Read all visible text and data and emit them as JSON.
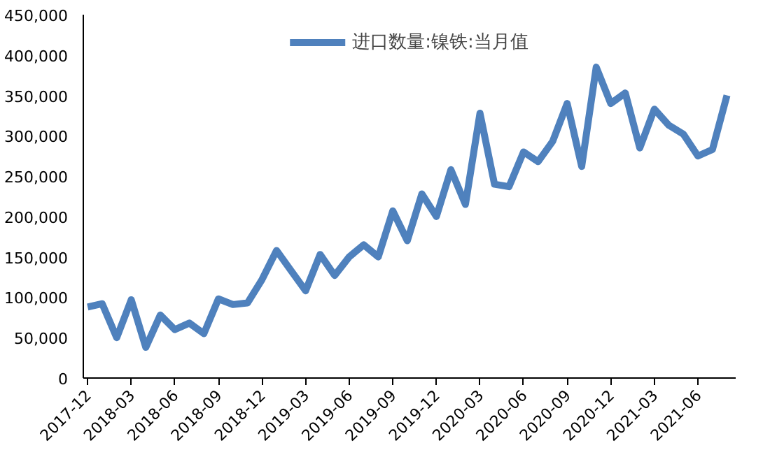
{
  "chart_data": {
    "type": "line",
    "categories": [
      "2017-12",
      null,
      null,
      "2018-03",
      null,
      null,
      "2018-06",
      null,
      null,
      "2018-09",
      null,
      null,
      "2018-12",
      null,
      null,
      "2019-03",
      null,
      null,
      "2019-06",
      null,
      null,
      "2019-09",
      null,
      null,
      "2019-12",
      null,
      null,
      "2020-03",
      null,
      null,
      "2020-06",
      null,
      null,
      "2020-09",
      null,
      null,
      "2020-12",
      null,
      null,
      "2021-03",
      null,
      null,
      "2021-06",
      null,
      null
    ],
    "series": [
      {
        "name": "进口数量:镍铁:当月值",
        "color": "#4f81bd",
        "values": [
          88000,
          92000,
          50000,
          97000,
          38000,
          78000,
          60000,
          68000,
          55000,
          98000,
          91000,
          93000,
          122000,
          158000,
          133000,
          108000,
          153000,
          127000,
          150000,
          165000,
          150000,
          207000,
          170000,
          228000,
          200000,
          258000,
          215000,
          328000,
          240000,
          237000,
          280000,
          268000,
          293000,
          340000,
          262000,
          385000,
          340000,
          353000,
          285000,
          333000,
          313000,
          302000,
          275000,
          283000,
          350000
        ]
      }
    ],
    "ylim": [
      0,
      450000
    ],
    "yticks": [
      {
        "value": 0,
        "label": "0"
      },
      {
        "value": 50000,
        "label": "50,000"
      },
      {
        "value": 100000,
        "label": "100,000"
      },
      {
        "value": 150000,
        "label": "150,000"
      },
      {
        "value": 200000,
        "label": "200,000"
      },
      {
        "value": 250000,
        "label": "250,000"
      },
      {
        "value": 300000,
        "label": "300,000"
      },
      {
        "value": 350000,
        "label": "350,000"
      },
      {
        "value": 400000,
        "label": "400,000"
      },
      {
        "value": 450000,
        "label": "450,000"
      }
    ],
    "grid": false,
    "legend": "top",
    "line_style": "solid",
    "marker": "none"
  }
}
